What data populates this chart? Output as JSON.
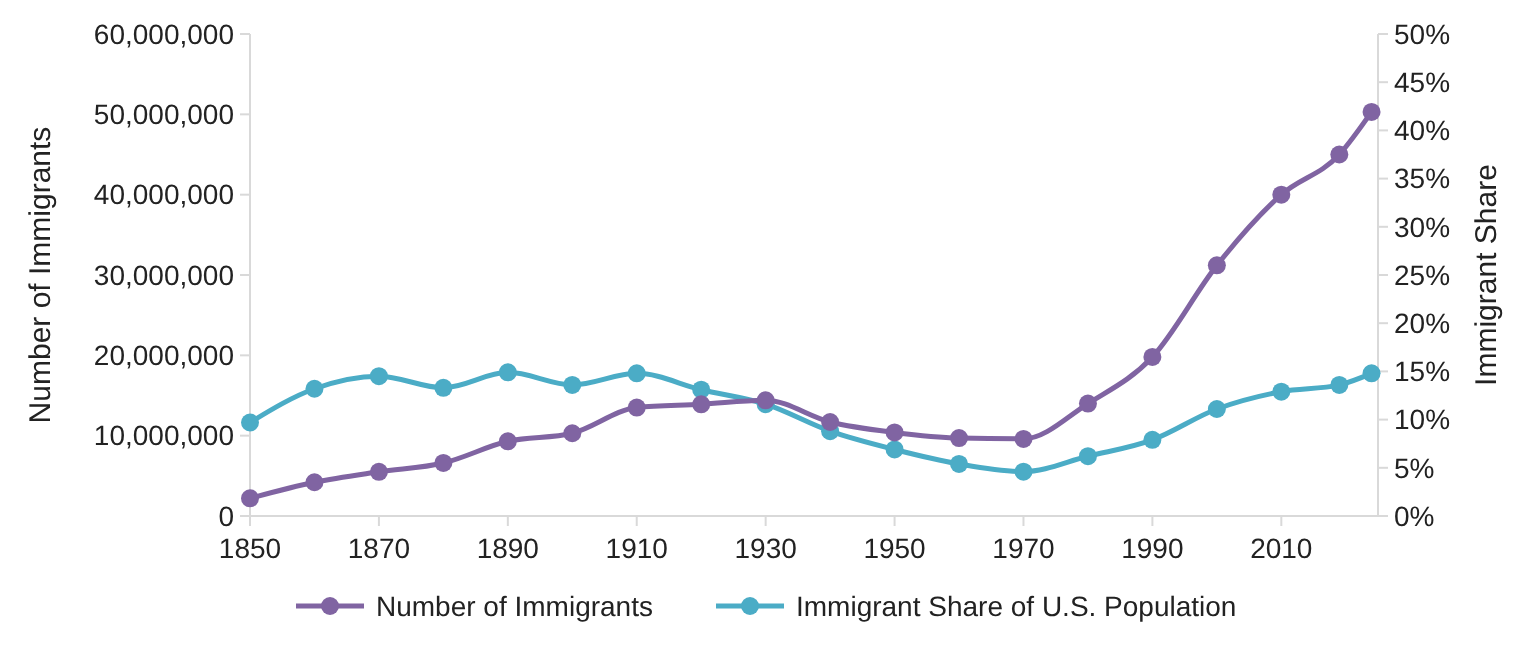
{
  "chart_data": {
    "type": "line",
    "ylabel": "Number of Immigrants",
    "y2label": "Immigrant Share",
    "x": [
      1850,
      1860,
      1870,
      1880,
      1890,
      1900,
      1910,
      1920,
      1930,
      1940,
      1950,
      1960,
      1970,
      1980,
      1990,
      2000,
      2010,
      2019,
      2024
    ],
    "series": [
      {
        "name": "Number of Immigrants",
        "color": "#8064a2",
        "values": [
          2200000,
          4200000,
          5500000,
          6600000,
          9300000,
          10300000,
          13500000,
          13900000,
          14400000,
          11700000,
          10400000,
          9700000,
          9600000,
          14000000,
          19800000,
          31200000,
          40000000,
          45000000,
          50300000
        ]
      },
      {
        "name": "Immigrant Share of U.S. Population",
        "color": "#4bacc6",
        "axis": "y2",
        "values": [
          9.7,
          13.2,
          14.5,
          13.3,
          14.9,
          13.6,
          14.8,
          13.1,
          11.6,
          8.8,
          6.9,
          5.4,
          4.6,
          6.2,
          7.9,
          11.1,
          12.9,
          13.6,
          14.8
        ]
      }
    ],
    "xlim": [
      1850,
      2025
    ],
    "xticks": [
      1850,
      1870,
      1890,
      1910,
      1930,
      1950,
      1970,
      1990,
      2010
    ],
    "ylim": [
      0,
      60000000
    ],
    "yticks": [
      0,
      {
        "value": 10000000,
        "label": "10,000,000"
      },
      {
        "value": 20000000,
        "label": "20,000,000"
      },
      {
        "value": 30000000,
        "label": "30,000,000"
      },
      {
        "value": 40000000,
        "label": "40,000,000"
      },
      {
        "value": 50000000,
        "label": "50,000,000"
      },
      {
        "value": 60000000,
        "label": "60,000,000"
      }
    ],
    "y2lim": [
      0,
      50
    ],
    "y2ticks": [
      {
        "value": 0,
        "label": "0%"
      },
      {
        "value": 5,
        "label": "5%"
      },
      {
        "value": 10,
        "label": "10%"
      },
      {
        "value": 15,
        "label": "15%"
      },
      {
        "value": 20,
        "label": "20%"
      },
      {
        "value": 25,
        "label": "25%"
      },
      {
        "value": 30,
        "label": "30%"
      },
      {
        "value": 35,
        "label": "35%"
      },
      {
        "value": 40,
        "label": "40%"
      },
      {
        "value": 45,
        "label": "45%"
      },
      {
        "value": 50,
        "label": "50%"
      }
    ],
    "grid": false,
    "legend": "bottom",
    "marker": "circle",
    "line_style": "solid"
  }
}
